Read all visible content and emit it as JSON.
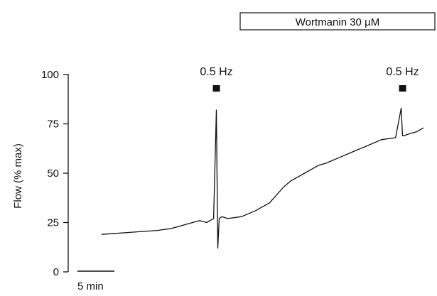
{
  "chart_data": {
    "type": "line",
    "ylabel": "Flow (% max)",
    "ylim": [
      0,
      100
    ],
    "yticks": [
      0,
      25,
      50,
      75,
      100
    ],
    "scale_bar_label": "5 min",
    "treatment_label": "Wortmanin 30 µM",
    "stimulus_markers": [
      {
        "label": "0.5 Hz",
        "time_min": 8.2
      },
      {
        "label": "0.5 Hz",
        "time_min": 21.5
      }
    ],
    "series": [
      {
        "time_min": [
          0,
          1,
          2,
          3,
          4,
          5,
          6,
          7,
          7.5,
          8,
          8.2,
          8.3,
          8.4,
          8.6,
          9,
          10,
          11,
          12,
          12.5,
          13,
          13.5,
          14,
          14.5,
          15,
          15.5,
          16,
          17,
          18,
          19,
          20,
          21,
          21.4,
          21.5,
          21.6,
          21.8,
          22,
          22.5,
          23
        ],
        "values": [
          19,
          19.5,
          20,
          20.5,
          21,
          22,
          24,
          26,
          25,
          27,
          82,
          12,
          27,
          28,
          27,
          28,
          31,
          35,
          39,
          43,
          46,
          48,
          50,
          52,
          54,
          55,
          58,
          61,
          64,
          67,
          68,
          83,
          69,
          69,
          69.5,
          70,
          71,
          73
        ]
      }
    ]
  }
}
